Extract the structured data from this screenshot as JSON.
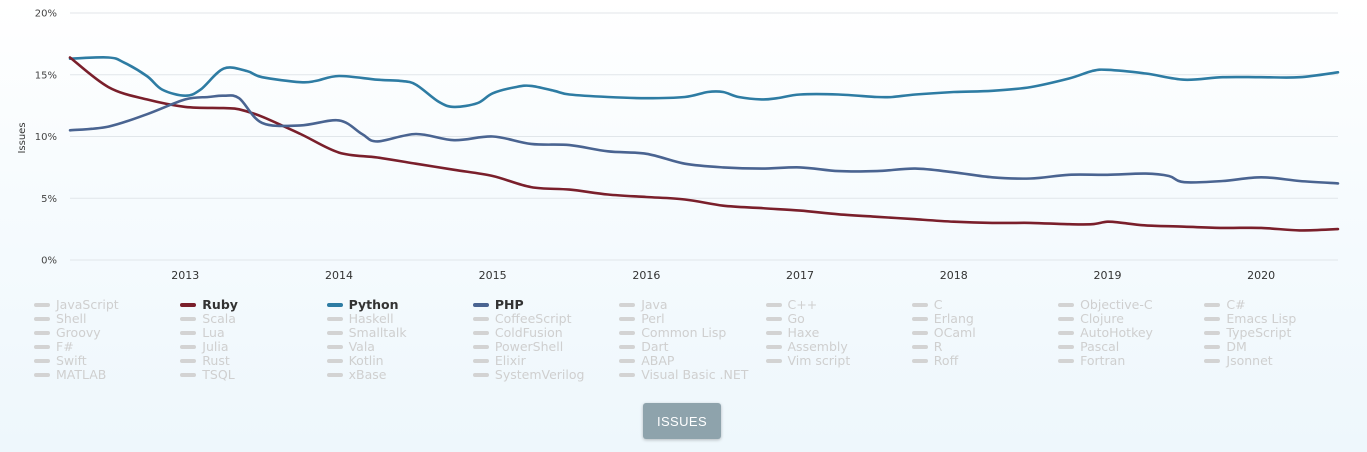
{
  "chart_data": {
    "type": "line",
    "ylabel": "Issues",
    "ylim": [
      0,
      20
    ],
    "yticks": [
      0,
      5,
      10,
      15,
      20
    ],
    "ytick_labels": [
      "0%",
      "5%",
      "10%",
      "15%",
      "20%"
    ],
    "xlim": [
      2012.25,
      2020.5
    ],
    "xticks": [
      2013,
      2014,
      2015,
      2016,
      2017,
      2018,
      2019,
      2020
    ],
    "grid": true,
    "legend_position": "bottom",
    "series": [
      {
        "name": "Python",
        "color": "#2e7ca3",
        "points": [
          [
            2012.25,
            16.3
          ],
          [
            2012.5,
            16.4
          ],
          [
            2012.6,
            16.0
          ],
          [
            2012.75,
            14.9
          ],
          [
            2012.85,
            13.8
          ],
          [
            2013.0,
            13.3
          ],
          [
            2013.1,
            13.8
          ],
          [
            2013.25,
            15.5
          ],
          [
            2013.4,
            15.3
          ],
          [
            2013.5,
            14.8
          ],
          [
            2013.75,
            14.4
          ],
          [
            2013.85,
            14.5
          ],
          [
            2014.0,
            14.9
          ],
          [
            2014.25,
            14.6
          ],
          [
            2014.4,
            14.5
          ],
          [
            2014.5,
            14.2
          ],
          [
            2014.65,
            12.8
          ],
          [
            2014.75,
            12.4
          ],
          [
            2014.9,
            12.7
          ],
          [
            2015.0,
            13.5
          ],
          [
            2015.15,
            14.0
          ],
          [
            2015.25,
            14.1
          ],
          [
            2015.4,
            13.7
          ],
          [
            2015.5,
            13.4
          ],
          [
            2015.75,
            13.2
          ],
          [
            2016.0,
            13.1
          ],
          [
            2016.25,
            13.2
          ],
          [
            2016.4,
            13.6
          ],
          [
            2016.5,
            13.6
          ],
          [
            2016.6,
            13.2
          ],
          [
            2016.75,
            13.0
          ],
          [
            2016.85,
            13.1
          ],
          [
            2017.0,
            13.4
          ],
          [
            2017.25,
            13.4
          ],
          [
            2017.5,
            13.2
          ],
          [
            2017.6,
            13.2
          ],
          [
            2017.75,
            13.4
          ],
          [
            2018.0,
            13.6
          ],
          [
            2018.25,
            13.7
          ],
          [
            2018.5,
            14.0
          ],
          [
            2018.75,
            14.7
          ],
          [
            2018.9,
            15.3
          ],
          [
            2019.0,
            15.4
          ],
          [
            2019.25,
            15.1
          ],
          [
            2019.5,
            14.6
          ],
          [
            2019.75,
            14.8
          ],
          [
            2020.0,
            14.8
          ],
          [
            2020.25,
            14.8
          ],
          [
            2020.5,
            15.2
          ]
        ]
      },
      {
        "name": "Ruby",
        "color": "#7a1f2b",
        "points": [
          [
            2012.25,
            16.4
          ],
          [
            2012.5,
            14.0
          ],
          [
            2012.75,
            13.0
          ],
          [
            2013.0,
            12.4
          ],
          [
            2013.25,
            12.3
          ],
          [
            2013.35,
            12.2
          ],
          [
            2013.5,
            11.6
          ],
          [
            2013.75,
            10.2
          ],
          [
            2014.0,
            8.7
          ],
          [
            2014.25,
            8.3
          ],
          [
            2014.5,
            7.8
          ],
          [
            2014.75,
            7.3
          ],
          [
            2015.0,
            6.8
          ],
          [
            2015.25,
            5.9
          ],
          [
            2015.5,
            5.7
          ],
          [
            2015.75,
            5.3
          ],
          [
            2016.0,
            5.1
          ],
          [
            2016.25,
            4.9
          ],
          [
            2016.5,
            4.4
          ],
          [
            2016.75,
            4.2
          ],
          [
            2017.0,
            4.0
          ],
          [
            2017.25,
            3.7
          ],
          [
            2017.5,
            3.5
          ],
          [
            2017.75,
            3.3
          ],
          [
            2018.0,
            3.1
          ],
          [
            2018.25,
            3.0
          ],
          [
            2018.5,
            3.0
          ],
          [
            2018.75,
            2.9
          ],
          [
            2018.9,
            2.9
          ],
          [
            2019.0,
            3.1
          ],
          [
            2019.1,
            3.0
          ],
          [
            2019.25,
            2.8
          ],
          [
            2019.5,
            2.7
          ],
          [
            2019.75,
            2.6
          ],
          [
            2020.0,
            2.6
          ],
          [
            2020.25,
            2.4
          ],
          [
            2020.5,
            2.5
          ]
        ]
      },
      {
        "name": "PHP",
        "color": "#4a6491",
        "points": [
          [
            2012.25,
            10.5
          ],
          [
            2012.5,
            10.8
          ],
          [
            2012.75,
            11.8
          ],
          [
            2013.0,
            13.0
          ],
          [
            2013.15,
            13.2
          ],
          [
            2013.25,
            13.3
          ],
          [
            2013.35,
            13.1
          ],
          [
            2013.5,
            11.1
          ],
          [
            2013.75,
            10.9
          ],
          [
            2014.0,
            11.3
          ],
          [
            2014.15,
            10.2
          ],
          [
            2014.25,
            9.6
          ],
          [
            2014.5,
            10.2
          ],
          [
            2014.75,
            9.7
          ],
          [
            2015.0,
            10.0
          ],
          [
            2015.25,
            9.4
          ],
          [
            2015.5,
            9.3
          ],
          [
            2015.75,
            8.8
          ],
          [
            2016.0,
            8.6
          ],
          [
            2016.25,
            7.8
          ],
          [
            2016.5,
            7.5
          ],
          [
            2016.75,
            7.4
          ],
          [
            2017.0,
            7.5
          ],
          [
            2017.25,
            7.2
          ],
          [
            2017.5,
            7.2
          ],
          [
            2017.75,
            7.4
          ],
          [
            2018.0,
            7.1
          ],
          [
            2018.25,
            6.7
          ],
          [
            2018.5,
            6.6
          ],
          [
            2018.75,
            6.9
          ],
          [
            2019.0,
            6.9
          ],
          [
            2019.25,
            7.0
          ],
          [
            2019.4,
            6.8
          ],
          [
            2019.5,
            6.3
          ],
          [
            2019.75,
            6.4
          ],
          [
            2020.0,
            6.7
          ],
          [
            2020.25,
            6.4
          ],
          [
            2020.5,
            6.2
          ]
        ]
      }
    ]
  },
  "legend": [
    {
      "label": "JavaScript",
      "active": false,
      "color": "#d3d3d3"
    },
    {
      "label": "Ruby",
      "active": true,
      "color": "#7a1f2b"
    },
    {
      "label": "Python",
      "active": true,
      "color": "#2e7ca3"
    },
    {
      "label": "PHP",
      "active": true,
      "color": "#4a6491"
    },
    {
      "label": "Java",
      "active": false,
      "color": "#d3d3d3"
    },
    {
      "label": "C++",
      "active": false,
      "color": "#d3d3d3"
    },
    {
      "label": "C",
      "active": false,
      "color": "#d3d3d3"
    },
    {
      "label": "Objective-C",
      "active": false,
      "color": "#d3d3d3"
    },
    {
      "label": "C#",
      "active": false,
      "color": "#d3d3d3"
    },
    {
      "label": "Shell",
      "active": false,
      "color": "#d3d3d3"
    },
    {
      "label": "Scala",
      "active": false,
      "color": "#d3d3d3"
    },
    {
      "label": "Haskell",
      "active": false,
      "color": "#d3d3d3"
    },
    {
      "label": "CoffeeScript",
      "active": false,
      "color": "#d3d3d3"
    },
    {
      "label": "Perl",
      "active": false,
      "color": "#d3d3d3"
    },
    {
      "label": "Go",
      "active": false,
      "color": "#d3d3d3"
    },
    {
      "label": "Erlang",
      "active": false,
      "color": "#d3d3d3"
    },
    {
      "label": "Clojure",
      "active": false,
      "color": "#d3d3d3"
    },
    {
      "label": "Emacs Lisp",
      "active": false,
      "color": "#d3d3d3"
    },
    {
      "label": "Groovy",
      "active": false,
      "color": "#d3d3d3"
    },
    {
      "label": "Lua",
      "active": false,
      "color": "#d3d3d3"
    },
    {
      "label": "Smalltalk",
      "active": false,
      "color": "#d3d3d3"
    },
    {
      "label": "ColdFusion",
      "active": false,
      "color": "#d3d3d3"
    },
    {
      "label": "Common Lisp",
      "active": false,
      "color": "#d3d3d3"
    },
    {
      "label": "Haxe",
      "active": false,
      "color": "#d3d3d3"
    },
    {
      "label": "OCaml",
      "active": false,
      "color": "#d3d3d3"
    },
    {
      "label": "AutoHotkey",
      "active": false,
      "color": "#d3d3d3"
    },
    {
      "label": "TypeScript",
      "active": false,
      "color": "#d3d3d3"
    },
    {
      "label": "F#",
      "active": false,
      "color": "#d3d3d3"
    },
    {
      "label": "Julia",
      "active": false,
      "color": "#d3d3d3"
    },
    {
      "label": "Vala",
      "active": false,
      "color": "#d3d3d3"
    },
    {
      "label": "PowerShell",
      "active": false,
      "color": "#d3d3d3"
    },
    {
      "label": "Dart",
      "active": false,
      "color": "#d3d3d3"
    },
    {
      "label": "Assembly",
      "active": false,
      "color": "#d3d3d3"
    },
    {
      "label": "R",
      "active": false,
      "color": "#d3d3d3"
    },
    {
      "label": "Pascal",
      "active": false,
      "color": "#d3d3d3"
    },
    {
      "label": "DM",
      "active": false,
      "color": "#d3d3d3"
    },
    {
      "label": "Swift",
      "active": false,
      "color": "#d3d3d3"
    },
    {
      "label": "Rust",
      "active": false,
      "color": "#d3d3d3"
    },
    {
      "label": "Kotlin",
      "active": false,
      "color": "#d3d3d3"
    },
    {
      "label": "Elixir",
      "active": false,
      "color": "#d3d3d3"
    },
    {
      "label": "ABAP",
      "active": false,
      "color": "#d3d3d3"
    },
    {
      "label": "Vim script",
      "active": false,
      "color": "#d3d3d3"
    },
    {
      "label": "Roff",
      "active": false,
      "color": "#d3d3d3"
    },
    {
      "label": "Fortran",
      "active": false,
      "color": "#d3d3d3"
    },
    {
      "label": "Jsonnet",
      "active": false,
      "color": "#d3d3d3"
    },
    {
      "label": "MATLAB",
      "active": false,
      "color": "#d3d3d3"
    },
    {
      "label": "TSQL",
      "active": false,
      "color": "#d3d3d3"
    },
    {
      "label": "xBase",
      "active": false,
      "color": "#d3d3d3"
    },
    {
      "label": "SystemVerilog",
      "active": false,
      "color": "#d3d3d3"
    },
    {
      "label": "Visual Basic .NET",
      "active": false,
      "color": "#d3d3d3"
    }
  ],
  "button": {
    "label": "ISSUES"
  }
}
